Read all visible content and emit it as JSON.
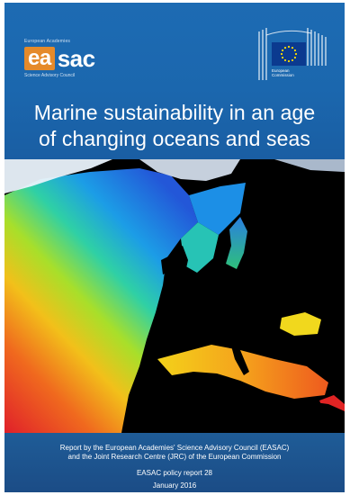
{
  "cover": {
    "easac": {
      "top_line": "European Academies",
      "logo_ea": "ea",
      "logo_sac": "sac",
      "bottom_line": "Science Advisory Council"
    },
    "ec": {
      "line1": "European",
      "line2": "Commission"
    },
    "title_line1": "Marine sustainability in an age",
    "title_line2": "of changing oceans and seas",
    "footer": {
      "line1": "Report by the European Academies' Science Advisory Council (EASAC)",
      "line2": "and the Joint Research Centre (JRC) of the European Commission",
      "line3": "EASAC policy report 28",
      "line4": "January 2016"
    }
  },
  "colors": {
    "header_blue": "#1b67ae",
    "footer_blue": "#1d5590",
    "easac_orange": "#e58a2a",
    "eu_blue": "#0b3a8f",
    "eu_star": "#ffdd00"
  }
}
